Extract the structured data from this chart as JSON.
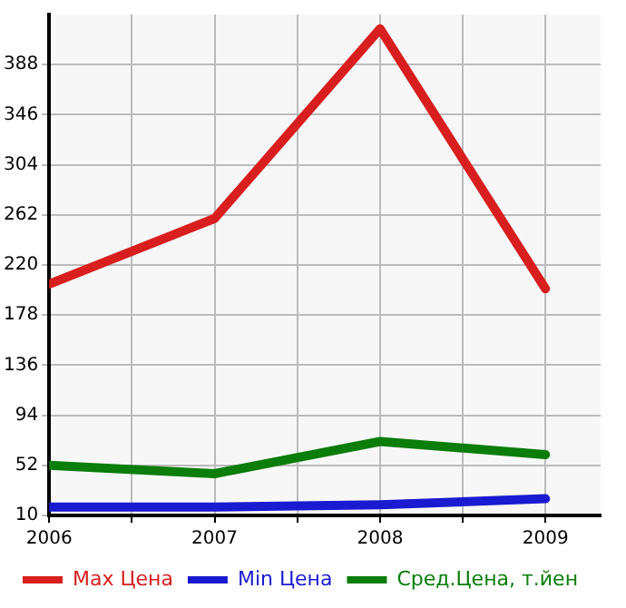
{
  "chart_data": {
    "type": "line",
    "x": [
      2006,
      2007,
      2008,
      2009
    ],
    "series": [
      {
        "name": "Max Цена",
        "color": "#d81e1e",
        "values": [
          204,
          259,
          418,
          200
        ]
      },
      {
        "name": "Min Цена",
        "color": "#1a1ad0",
        "values": [
          17,
          17,
          19,
          24
        ]
      },
      {
        "name": "Сред.Цена, т.йен",
        "color": "#0a7d0a",
        "values": [
          52,
          45,
          72,
          61
        ]
      }
    ],
    "xlim": [
      2006,
      2009.333
    ],
    "xticks": [
      2006,
      {
        "value": 2006.5,
        "label": null
      },
      2007,
      {
        "value": 2007.5,
        "label": null
      },
      2008,
      {
        "value": 2008.5,
        "label": null
      },
      2009
    ],
    "ylim": [
      10,
      430
    ],
    "yticks": [
      10,
      52,
      94,
      136,
      178,
      220,
      262,
      304,
      346,
      388
    ],
    "grid": true,
    "legend": "bottom",
    "marker": "none",
    "line_style": "solid"
  }
}
